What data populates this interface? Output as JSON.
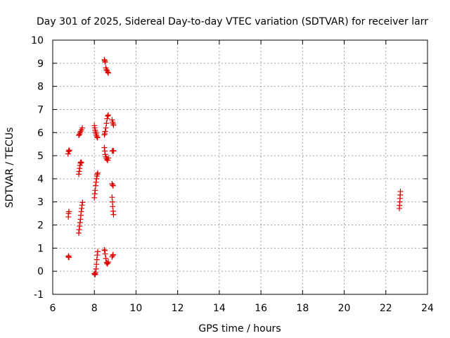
{
  "chart_data": {
    "type": "scatter",
    "title": "Day 301 of 2025, Sidereal Day-to-day VTEC variation (SDTVAR) for receiver larr",
    "xlabel": "GPS time / hours",
    "ylabel": "SDTVAR / TECUs",
    "xlim": [
      6,
      24
    ],
    "ylim": [
      -1,
      10
    ],
    "xticks": [
      6,
      8,
      10,
      12,
      14,
      16,
      18,
      20,
      22,
      24
    ],
    "yticks": [
      -1,
      0,
      1,
      2,
      3,
      4,
      5,
      6,
      7,
      8,
      9,
      10
    ],
    "grid": true,
    "marker": "+",
    "color": "#dd0000",
    "series": [
      {
        "name": "SDTVAR",
        "points": [
          [
            6.75,
            0.62
          ],
          [
            6.76,
            0.66
          ],
          [
            6.78,
            0.6
          ],
          [
            6.75,
            2.35
          ],
          [
            6.76,
            2.5
          ],
          [
            6.78,
            2.58
          ],
          [
            6.74,
            5.08
          ],
          [
            6.76,
            5.18
          ],
          [
            6.78,
            5.24
          ],
          [
            6.8,
            5.22
          ],
          [
            7.25,
            1.65
          ],
          [
            7.27,
            1.8
          ],
          [
            7.29,
            1.95
          ],
          [
            7.31,
            2.1
          ],
          [
            7.33,
            2.25
          ],
          [
            7.35,
            2.42
          ],
          [
            7.37,
            2.58
          ],
          [
            7.39,
            2.72
          ],
          [
            7.41,
            2.86
          ],
          [
            7.43,
            2.98
          ],
          [
            7.25,
            4.2
          ],
          [
            7.27,
            4.32
          ],
          [
            7.29,
            4.45
          ],
          [
            7.31,
            4.58
          ],
          [
            7.33,
            4.68
          ],
          [
            7.35,
            4.72
          ],
          [
            7.38,
            4.7
          ],
          [
            7.25,
            5.88
          ],
          [
            7.28,
            5.92
          ],
          [
            7.31,
            5.98
          ],
          [
            7.34,
            6.05
          ],
          [
            7.38,
            6.12
          ],
          [
            7.42,
            6.2
          ],
          [
            8.0,
            -0.1
          ],
          [
            8.02,
            -0.15
          ],
          [
            8.04,
            -0.12
          ],
          [
            8.06,
            -0.05
          ],
          [
            8.08,
            0.1
          ],
          [
            8.1,
            0.3
          ],
          [
            8.12,
            0.5
          ],
          [
            8.14,
            0.7
          ],
          [
            8.16,
            0.85
          ],
          [
            8.0,
            3.18
          ],
          [
            8.02,
            3.35
          ],
          [
            8.04,
            3.5
          ],
          [
            8.06,
            3.7
          ],
          [
            8.08,
            3.85
          ],
          [
            8.1,
            4.0
          ],
          [
            8.12,
            4.12
          ],
          [
            8.14,
            4.2
          ],
          [
            8.16,
            4.25
          ],
          [
            8.0,
            6.3
          ],
          [
            8.02,
            6.2
          ],
          [
            8.04,
            6.1
          ],
          [
            8.06,
            6.02
          ],
          [
            8.08,
            5.95
          ],
          [
            8.1,
            5.88
          ],
          [
            8.12,
            5.82
          ],
          [
            8.15,
            5.78
          ],
          [
            8.48,
            0.92
          ],
          [
            8.5,
            0.9
          ],
          [
            8.52,
            0.75
          ],
          [
            8.55,
            0.55
          ],
          [
            8.58,
            0.38
          ],
          [
            8.61,
            0.32
          ],
          [
            8.64,
            0.35
          ],
          [
            8.67,
            0.4
          ],
          [
            8.48,
            5.35
          ],
          [
            8.5,
            5.2
          ],
          [
            8.52,
            5.05
          ],
          [
            8.55,
            4.95
          ],
          [
            8.58,
            4.88
          ],
          [
            8.61,
            4.82
          ],
          [
            8.64,
            4.8
          ],
          [
            8.67,
            4.9
          ],
          [
            8.48,
            5.9
          ],
          [
            8.5,
            5.95
          ],
          [
            8.52,
            6.05
          ],
          [
            8.55,
            6.2
          ],
          [
            8.58,
            6.4
          ],
          [
            8.61,
            6.6
          ],
          [
            8.64,
            6.72
          ],
          [
            8.67,
            6.76
          ],
          [
            8.48,
            9.15
          ],
          [
            8.5,
            9.1
          ],
          [
            8.52,
            9.05
          ],
          [
            8.55,
            8.8
          ],
          [
            8.58,
            8.72
          ],
          [
            8.61,
            8.68
          ],
          [
            8.64,
            8.62
          ],
          [
            8.67,
            8.58
          ],
          [
            8.85,
            0.62
          ],
          [
            8.88,
            0.68
          ],
          [
            8.9,
            0.72
          ],
          [
            8.85,
            3.2
          ],
          [
            8.87,
            3.0
          ],
          [
            8.88,
            2.8
          ],
          [
            8.9,
            2.6
          ],
          [
            8.92,
            2.45
          ],
          [
            8.85,
            3.78
          ],
          [
            8.88,
            3.72
          ],
          [
            8.9,
            3.7
          ],
          [
            8.86,
            5.2
          ],
          [
            8.9,
            5.22
          ],
          [
            8.92,
            5.2
          ],
          [
            8.85,
            6.55
          ],
          [
            8.88,
            6.45
          ],
          [
            8.9,
            6.38
          ],
          [
            8.92,
            6.32
          ],
          [
            22.65,
            2.72
          ],
          [
            22.66,
            2.85
          ],
          [
            22.67,
            3.0
          ],
          [
            22.68,
            3.15
          ],
          [
            22.69,
            3.3
          ],
          [
            22.7,
            3.45
          ]
        ]
      }
    ]
  }
}
